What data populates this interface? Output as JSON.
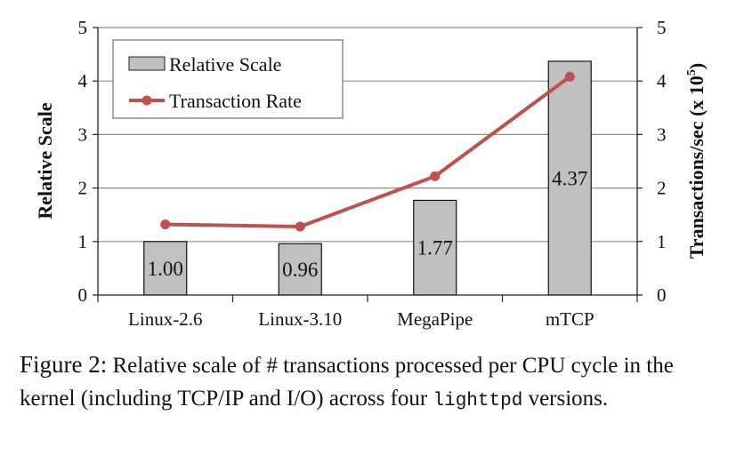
{
  "chart_data": {
    "type": "bar",
    "categories": [
      "Linux-2.6",
      "Linux-3.10",
      "MegaPipe",
      "mTCP"
    ],
    "series": [
      {
        "name": "Relative Scale",
        "type": "bar",
        "axis": "left",
        "values": [
          1.0,
          0.96,
          1.77,
          4.37
        ],
        "labels": [
          "1.00",
          "0.96",
          "1.77",
          "4.37"
        ],
        "color": "#c0c0c0"
      },
      {
        "name": "Transaction Rate",
        "type": "line",
        "axis": "right",
        "values": [
          1.32,
          1.28,
          2.22,
          4.08
        ],
        "color": "#c0504d"
      }
    ],
    "ylabel": "Relative Scale",
    "y2label_prefix": "Transactions/sec (x 10",
    "y2label_exp": "5",
    "y2label_suffix": ")",
    "ylim": [
      0,
      5
    ],
    "y2lim": [
      0,
      5
    ],
    "yticks": [
      "0",
      "1",
      "2",
      "3",
      "4",
      "5"
    ],
    "y2ticks": [
      "0",
      "1",
      "2",
      "3",
      "4",
      "5"
    ],
    "grid": true,
    "legend": "top-left"
  },
  "caption": {
    "label": "Figure 2:",
    "text": "Relative scale of # transactions processed per CPU cycle in the kernel (including TCP/IP and I/O) across four",
    "code": "lighttpd",
    "tail": "versions."
  }
}
